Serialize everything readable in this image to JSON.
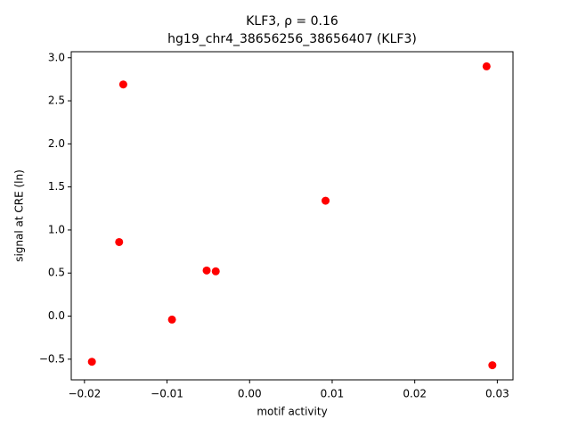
{
  "chart_data": {
    "type": "scatter",
    "title": "KLF3, ρ = 0.16",
    "subtitle": "hg19_chr4_38656256_38656407 (KLF3)",
    "x_label": "motif activity",
    "y_label": "signal at CRE (ln)",
    "color": "#ff0000",
    "x": [
      -0.0191,
      -0.0153,
      -0.0158,
      -0.0094,
      -0.0052,
      -0.0041,
      0.0092,
      0.0287,
      0.0294
    ],
    "values": [
      -0.53,
      2.69,
      0.86,
      -0.04,
      0.53,
      0.52,
      1.34,
      2.9,
      -0.57
    ],
    "xlim": [
      -0.0216,
      0.0319
    ],
    "ylim": [
      -0.74,
      3.07
    ],
    "xticks": [
      {
        "value": -0.02,
        "label": "−0.02"
      },
      {
        "value": -0.01,
        "label": "−0.01"
      },
      {
        "value": 0,
        "label": "0.00"
      },
      0.01,
      0.02,
      0.03
    ],
    "yticks": [
      {
        "value": -0.5,
        "label": "−0.5"
      },
      {
        "value": 0,
        "label": "0.0"
      },
      0.5,
      {
        "value": 1,
        "label": "1.0"
      },
      1.5,
      {
        "value": 2,
        "label": "2.0"
      },
      2.5,
      {
        "value": 3,
        "label": "3.0"
      }
    ],
    "grid": false
  }
}
